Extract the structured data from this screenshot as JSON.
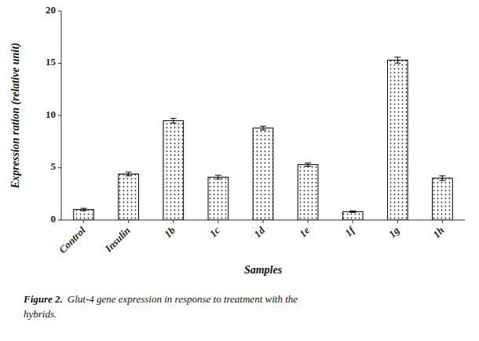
{
  "chart_data": {
    "type": "bar",
    "categories": [
      "Control",
      "Insulin",
      "1b",
      "1c",
      "1d",
      "1e",
      "1f",
      "1g",
      "1h"
    ],
    "values": [
      1.0,
      4.4,
      9.5,
      4.1,
      8.8,
      5.3,
      0.8,
      15.3,
      4.0
    ],
    "errors": [
      0.12,
      0.18,
      0.22,
      0.18,
      0.18,
      0.15,
      0.07,
      0.28,
      0.22
    ],
    "xlabel": "Samples",
    "ylabel": "Expression ration (relative unit)",
    "ylim": [
      0,
      20
    ],
    "yticks": [
      0,
      5,
      10,
      15,
      20
    ],
    "color": "white",
    "grid": false,
    "annotations": [
      "Figure 2.",
      "Glut-4 gene expression in response to treatment with the",
      "hybrids."
    ]
  }
}
